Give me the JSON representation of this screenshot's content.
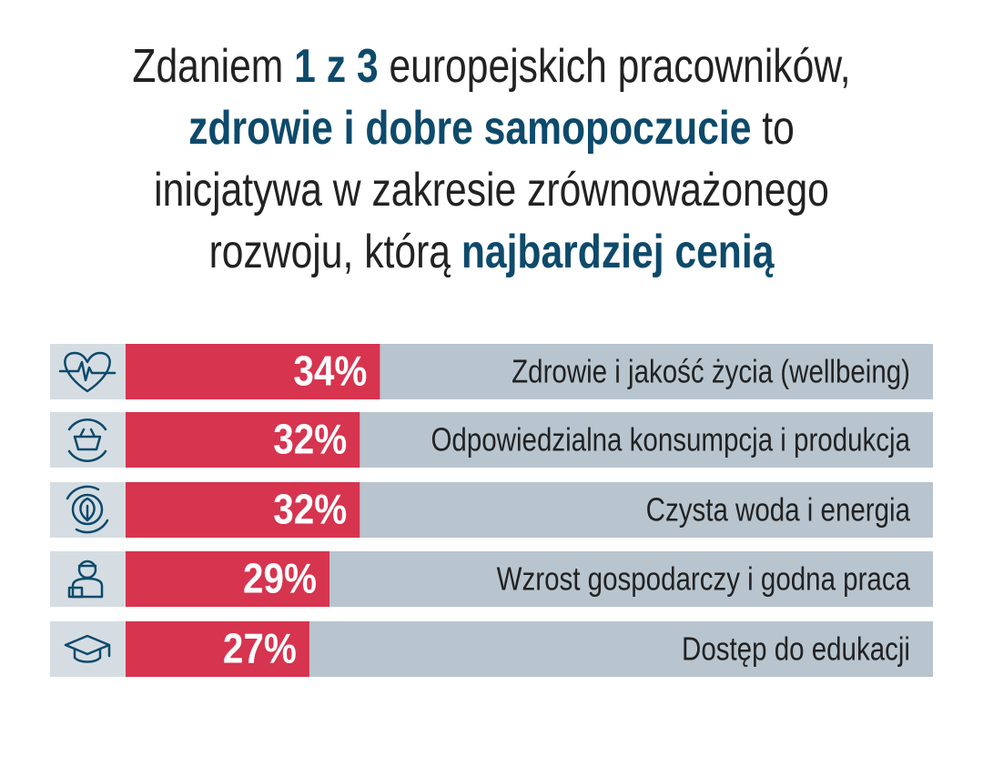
{
  "chart_data": {
    "type": "bar",
    "orientation": "horizontal",
    "title": [
      [
        {
          "text": "Zdaniem ",
          "bold": false
        },
        {
          "text": "1 z 3",
          "bold": true
        },
        {
          "text": " europejskich pracowników,",
          "bold": false
        }
      ],
      [
        {
          "text": "zdrowie i dobre samopoczucie",
          "bold": true
        },
        {
          "text": " to",
          "bold": false
        }
      ],
      [
        {
          "text": "inicjatywa w zakresie zrównoważonego",
          "bold": false
        }
      ],
      [
        {
          "text": "rozwoju, którą ",
          "bold": false
        },
        {
          "text": "najbardziej cenią",
          "bold": true
        }
      ]
    ],
    "categories": [
      "Zdrowie i jakość życia (wellbeing)",
      "Odpowiedzialna konsumpcja i produkcja",
      "Czysta woda i energia",
      "Wzrost gospodarczy i godna praca",
      "Dostęp do edukacji"
    ],
    "values": [
      34,
      32,
      32,
      29,
      27
    ],
    "value_labels": [
      "34%",
      "32%",
      "32%",
      "29%",
      "27%"
    ],
    "color": "#d6344f",
    "track_color": "#b8c5cf",
    "highlight_color": "#0d4a6b"
  }
}
